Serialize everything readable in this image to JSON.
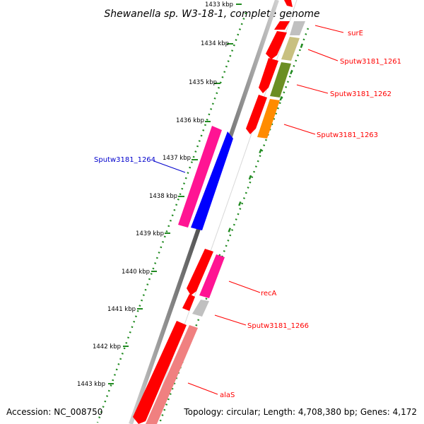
{
  "title": "Shewanella sp. W3-18-1, complete genome",
  "accession": "Accession: NC_008750",
  "topology": "Topology: circular; Length: 4,708,380 bp; Genes: 4,172",
  "ticks": {
    "t1433": "1433 kbp",
    "t1434": "1434 kbp",
    "t1435": "1435 kbp",
    "t1436": "1436 kbp",
    "t1437": "1437 kbp",
    "t1438": "1438 kbp",
    "t1439": "1439 kbp",
    "t1440": "1440 kbp",
    "t1441": "1441 kbp",
    "t1442": "1442 kbp",
    "t1443": "1443 kbp"
  },
  "genes": {
    "surE": "surE",
    "g1261": "Sputw3181_1261",
    "g1262": "Sputw3181_1262",
    "g1263": "Sputw3181_1263",
    "g1264": "Sputw3181_1264",
    "recA": "recA",
    "g1266": "Sputw3181_1266",
    "alaS": "alaS"
  },
  "colors": {
    "cds_red": "#ff0000",
    "magenta": "#ff1493",
    "blue": "#0000ff",
    "khaki": "#c8c080",
    "olive": "#6b8e23",
    "orange": "#ff8c00",
    "gray": "#c0c0c0",
    "salmon": "#f08080",
    "tick_green": "#228b22",
    "label_red": "#ff0000",
    "label_blue": "#0000cc"
  }
}
